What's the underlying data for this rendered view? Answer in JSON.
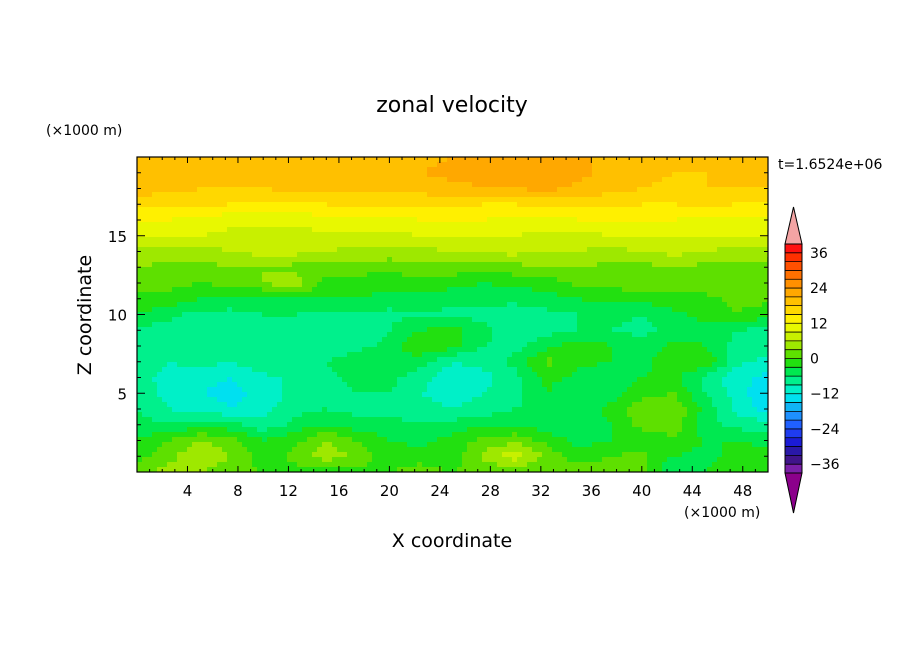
{
  "chart_data": {
    "type": "heatmap",
    "title": "zonal velocity",
    "xlabel": "X coordinate",
    "ylabel": "Z coordinate",
    "x_unit_label": "(×1000 m)",
    "y_unit_label": "(×1000 m)",
    "time_label": "t=1.6524e+06",
    "xlim": [
      0,
      50
    ],
    "ylim": [
      0,
      20
    ],
    "x_ticks": [
      4,
      8,
      12,
      16,
      20,
      24,
      28,
      32,
      36,
      40,
      44,
      48
    ],
    "y_ticks": [
      5,
      10,
      15
    ],
    "colorbar": {
      "levels": [
        -39,
        -36,
        -33,
        -30,
        -27,
        -24,
        -21,
        -18,
        -15,
        -12,
        -9,
        -6,
        -3,
        0,
        3,
        6,
        9,
        12,
        15,
        18,
        21,
        24,
        27,
        30,
        33,
        36,
        39
      ],
      "colors": [
        "#7a1fa8",
        "#40148a",
        "#2a18a8",
        "#1b1bd6",
        "#1f3cf0",
        "#2060ff",
        "#1e90ff",
        "#10b4f5",
        "#00e0f0",
        "#00f0c8",
        "#00f08c",
        "#00e850",
        "#22e010",
        "#5ee000",
        "#9ee800",
        "#c8f000",
        "#e8f800",
        "#fff000",
        "#ffd800",
        "#ffc000",
        "#ffa800",
        "#ff9000",
        "#ff7000",
        "#ff5000",
        "#ff3000",
        "#ff1010"
      ],
      "tick_labels": [
        "36",
        "24",
        "12",
        "0",
        "−12",
        "−24",
        "−36"
      ],
      "tick_values": [
        36,
        24,
        12,
        0,
        -12,
        -24,
        -36
      ],
      "extend": "both",
      "upper_extension_color": "#f4a4a4",
      "lower_extension_color": "#8b008b"
    },
    "grid_x": [
      0,
      2.5,
      5,
      7.5,
      10,
      12.5,
      15,
      17.5,
      20,
      22.5,
      25,
      27.5,
      30,
      32.5,
      35,
      37.5,
      40,
      42.5,
      45,
      47.5,
      50
    ],
    "grid_z": [
      0,
      1,
      2,
      3,
      4,
      5,
      6,
      7,
      8,
      9,
      10,
      11,
      12,
      13,
      14,
      15,
      16,
      17,
      18,
      19,
      20
    ],
    "z_grid_rows": [
      [
        2,
        4,
        3,
        1,
        0,
        -1,
        -2,
        -1,
        0,
        1,
        0,
        1,
        0,
        1,
        3,
        2,
        1,
        -6,
        -3,
        0,
        0
      ],
      [
        -1,
        2,
        6,
        3,
        -2,
        1,
        5,
        2,
        -2,
        -1,
        -2,
        4,
        8,
        2,
        -2,
        0,
        1,
        -3,
        -4,
        -2,
        -1
      ],
      [
        -3,
        0,
        3,
        1,
        -3,
        -1,
        3,
        0,
        -3,
        -4,
        -2,
        1,
        2,
        -1,
        -4,
        -3,
        -2,
        -1,
        -3,
        -3,
        -4
      ],
      [
        -5,
        -6,
        -4,
        -5,
        -8,
        -5,
        -3,
        -5,
        -5,
        -6,
        -5,
        -3,
        -3,
        -5,
        -6,
        -3,
        1,
        2,
        -5,
        -7,
        -8
      ],
      [
        -6,
        -9,
        -10,
        -12,
        -10,
        -7,
        -6,
        -7,
        -7,
        -8,
        -9,
        -8,
        -6,
        -6,
        -5,
        -2,
        2,
        3,
        -4,
        -10,
        -13
      ],
      [
        -7,
        -10,
        -12,
        -13,
        -11,
        -8,
        -7,
        -6,
        -6,
        -9,
        -10,
        -9,
        -7,
        -3,
        -6,
        -5,
        -1,
        0,
        -6,
        -10,
        -15
      ],
      [
        -8,
        -10,
        -11,
        -12,
        -10,
        -8,
        -7,
        -5,
        -5,
        -8,
        -11,
        -10,
        -7,
        -2,
        -4,
        -5,
        -3,
        -2,
        -7,
        -11,
        -13
      ],
      [
        -7,
        -9,
        -8,
        -9,
        -6,
        -6,
        -6,
        -4,
        -3,
        -5,
        -9,
        -8,
        -5,
        1,
        -2,
        -3,
        -4,
        -1,
        0,
        -8,
        -10
      ],
      [
        -6,
        -7,
        -8,
        -7,
        -6,
        -7,
        -8,
        -7,
        -5,
        0,
        -2,
        -6,
        -7,
        -4,
        -1,
        -3,
        -5,
        -2,
        -3,
        -7,
        -8
      ],
      [
        -6,
        -8,
        -8,
        -9,
        -7,
        -8,
        -9,
        -8,
        -6,
        -3,
        -2,
        -5,
        -8,
        -7,
        -6,
        -6,
        -7,
        -5,
        -4,
        -6,
        -7
      ],
      [
        -3,
        -5,
        -7,
        -7,
        -6,
        -6,
        -7,
        -7,
        -7,
        -6,
        -7,
        -7,
        -8,
        -7,
        -6,
        -5,
        -6,
        -4,
        -2,
        0,
        -2
      ],
      [
        -1,
        -1,
        -3,
        -4,
        -4,
        -3,
        -3,
        -3,
        -4,
        -4,
        -5,
        -5,
        -5,
        -4,
        -3,
        -2,
        -2,
        -1,
        -1,
        1,
        1
      ],
      [
        2,
        1,
        0,
        1,
        3,
        5,
        -1,
        -2,
        -2,
        -1,
        -2,
        -3,
        -2,
        -2,
        1,
        1,
        2,
        2,
        2,
        2,
        2
      ],
      [
        3,
        2,
        2,
        3,
        3,
        2,
        2,
        2,
        1,
        2,
        2,
        1,
        2,
        3,
        3,
        2,
        2,
        3,
        2,
        2,
        1
      ],
      [
        5,
        5,
        5,
        6,
        7,
        7,
        6,
        5,
        5,
        5,
        6,
        7,
        7,
        6,
        6,
        5,
        6,
        7,
        6,
        5,
        5
      ],
      [
        10,
        10,
        9,
        8,
        8,
        8,
        8,
        8,
        8,
        9,
        9,
        9,
        9,
        8,
        8,
        9,
        9,
        9,
        9,
        9,
        9
      ],
      [
        12,
        12,
        11,
        10,
        10,
        10,
        11,
        11,
        11,
        12,
        12,
        12,
        11,
        11,
        12,
        13,
        12,
        12,
        11,
        11,
        11
      ],
      [
        15,
        16,
        16,
        15,
        14,
        14,
        15,
        16,
        16,
        16,
        16,
        15,
        15,
        16,
        16,
        16,
        15,
        15,
        16,
        15,
        15
      ],
      [
        20,
        19,
        18,
        18,
        18,
        19,
        19,
        19,
        19,
        19,
        20,
        21,
        21,
        22,
        20,
        19,
        18,
        17,
        18,
        18,
        18
      ],
      [
        21,
        21,
        20,
        20,
        19,
        20,
        20,
        19,
        19,
        21,
        22,
        22,
        23,
        24,
        22,
        20,
        19,
        18,
        18,
        19,
        18
      ],
      [
        20,
        20,
        19,
        19,
        19,
        20,
        20,
        19,
        19,
        20,
        21,
        22,
        24,
        24,
        22,
        20,
        19,
        18,
        18,
        19,
        18
      ]
    ]
  }
}
